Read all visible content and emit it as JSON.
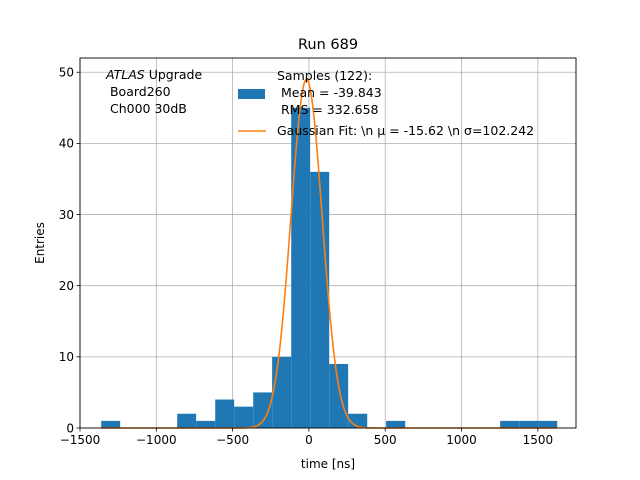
{
  "chart_data": {
    "type": "bar",
    "title": "Run 689",
    "xlabel": "time [ns]",
    "ylabel": "Entries",
    "xlim": [
      -1500,
      1750
    ],
    "ylim": [
      0,
      52
    ],
    "grid": true,
    "x_ticks": [
      -1500,
      -1000,
      -500,
      0,
      500,
      1000,
      1500
    ],
    "y_ticks": [
      0,
      10,
      20,
      30,
      40,
      50
    ],
    "x_tick_labels": [
      "−1500",
      "−1000",
      "−500",
      "0",
      "500",
      "1000",
      "1500"
    ],
    "y_tick_labels": [
      "0",
      "10",
      "20",
      "30",
      "40",
      "50"
    ],
    "annotation": {
      "atlas": "ATLAS",
      "line1_rest": " Upgrade",
      "line2": " Board260",
      "line3": " Ch000 30dB"
    },
    "legend": {
      "position": "top-right",
      "hist_label_lines": [
        "Samples (122):",
        " Mean = -39.843",
        " RMS = 332.658"
      ],
      "fit_label": "Gaussian Fit: \\n μ = -15.62 \\n σ=102.242"
    },
    "series": [
      {
        "kind": "histogram",
        "color": "#1f77b4",
        "bins": [
          {
            "x0": -1361,
            "x1": -1237,
            "count": 1
          },
          {
            "x0": -863,
            "x1": -739,
            "count": 2
          },
          {
            "x0": -739,
            "x1": -614,
            "count": 1
          },
          {
            "x0": -614,
            "x1": -490,
            "count": 4
          },
          {
            "x0": -490,
            "x1": -365,
            "count": 3
          },
          {
            "x0": -365,
            "x1": -241,
            "count": 5
          },
          {
            "x0": -241,
            "x1": -116,
            "count": 10
          },
          {
            "x0": -116,
            "x1": 8,
            "count": 45
          },
          {
            "x0": 8,
            "x1": 133,
            "count": 36
          },
          {
            "x0": 133,
            "x1": 257,
            "count": 9
          },
          {
            "x0": 257,
            "x1": 382,
            "count": 2
          },
          {
            "x0": 506,
            "x1": 631,
            "count": 1
          },
          {
            "x0": 1253,
            "x1": 1378,
            "count": 1
          },
          {
            "x0": 1378,
            "x1": 1502,
            "count": 1
          },
          {
            "x0": 1502,
            "x1": 1627,
            "count": 1
          }
        ]
      },
      {
        "kind": "line",
        "color": "#ff7f0e",
        "gaussian": {
          "mu": -15.62,
          "sigma": 102.242,
          "amplitude": 49
        },
        "x_range": [
          -1361,
          1627
        ]
      }
    ]
  }
}
